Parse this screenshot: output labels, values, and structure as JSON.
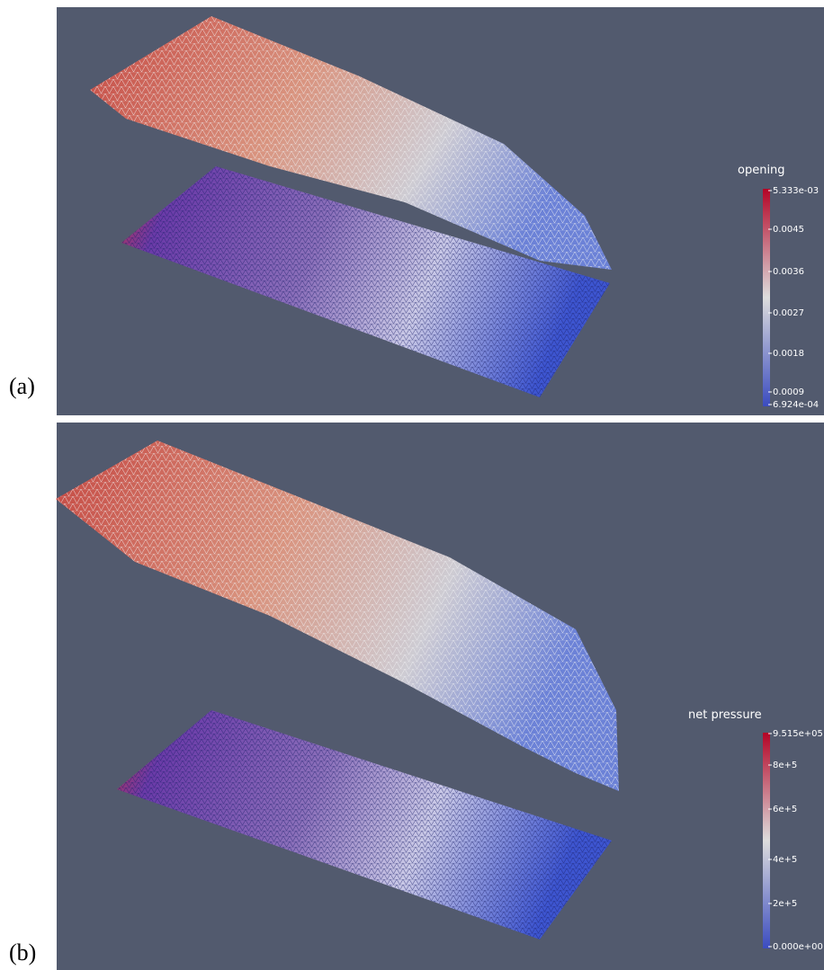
{
  "panels": [
    {
      "label": "(a)",
      "colorbar": {
        "title": "opening",
        "labels": [
          "5.333e-03",
          "0.0045",
          "0.0036",
          "0.0027",
          "0.0018",
          "0.0009",
          "6.924e-04"
        ]
      }
    },
    {
      "label": "(b)",
      "colorbar": {
        "title": "net pressure",
        "labels": [
          "9.515e+05",
          "8e+5",
          "6e+5",
          "4e+5",
          "2e+5",
          "0.000e+00"
        ]
      }
    }
  ]
}
